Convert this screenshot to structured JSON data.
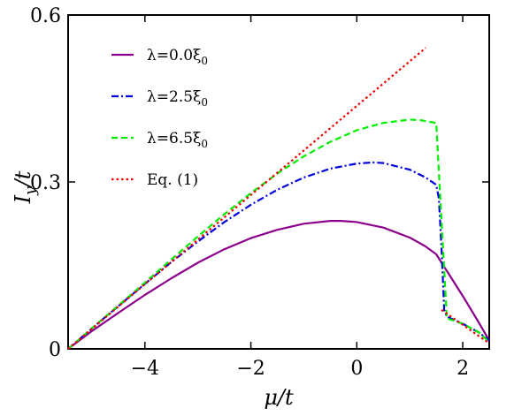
{
  "chart_data": {
    "type": "line",
    "title": "",
    "xlabel": "μ/t",
    "ylabel": "I_y/t",
    "xlim": [
      -5.45,
      2.5
    ],
    "ylim": [
      0,
      0.6
    ],
    "xticks": [
      {
        "value": -4,
        "label": "−4"
      },
      {
        "value": -2,
        "label": "−2"
      },
      {
        "value": 0,
        "label": "0"
      },
      {
        "value": 2,
        "label": "2"
      }
    ],
    "yticks": [
      {
        "value": 0,
        "label": "0"
      },
      {
        "value": 0.3,
        "label": "0.3"
      },
      {
        "value": 0.6,
        "label": "0.6"
      }
    ],
    "grid": false,
    "legend_position": "top-left",
    "series": [
      {
        "name": "λ=0.0ξ0",
        "color": "#8B008B",
        "dash": "solid",
        "points": [
          [
            -5.45,
            0.0
          ],
          [
            -5.0,
            0.032
          ],
          [
            -4.5,
            0.065
          ],
          [
            -4.0,
            0.097
          ],
          [
            -3.5,
            0.127
          ],
          [
            -3.0,
            0.155
          ],
          [
            -2.5,
            0.179
          ],
          [
            -2.0,
            0.199
          ],
          [
            -1.5,
            0.214
          ],
          [
            -1.0,
            0.225
          ],
          [
            -0.5,
            0.23
          ],
          [
            -0.3,
            0.23
          ],
          [
            0.0,
            0.228
          ],
          [
            0.5,
            0.218
          ],
          [
            1.0,
            0.2
          ],
          [
            1.3,
            0.184
          ],
          [
            1.5,
            0.17
          ],
          [
            1.7,
            0.14
          ],
          [
            2.0,
            0.095
          ],
          [
            2.3,
            0.048
          ],
          [
            2.5,
            0.015
          ]
        ]
      },
      {
        "name": "λ=2.5ξ0",
        "color": "#0000DD",
        "dash": "dashdot",
        "points": [
          [
            -5.45,
            0.0
          ],
          [
            -5.0,
            0.037
          ],
          [
            -4.5,
            0.077
          ],
          [
            -4.0,
            0.117
          ],
          [
            -3.5,
            0.156
          ],
          [
            -3.0,
            0.193
          ],
          [
            -2.5,
            0.228
          ],
          [
            -2.0,
            0.259
          ],
          [
            -1.5,
            0.286
          ],
          [
            -1.0,
            0.308
          ],
          [
            -0.5,
            0.324
          ],
          [
            0.0,
            0.333
          ],
          [
            0.3,
            0.335
          ],
          [
            0.5,
            0.334
          ],
          [
            1.0,
            0.322
          ],
          [
            1.3,
            0.308
          ],
          [
            1.5,
            0.295
          ],
          [
            1.55,
            0.27
          ],
          [
            1.6,
            0.18
          ],
          [
            1.65,
            0.07
          ],
          [
            1.7,
            0.058
          ],
          [
            2.0,
            0.045
          ],
          [
            2.3,
            0.03
          ],
          [
            2.5,
            0.015
          ]
        ]
      },
      {
        "name": "λ=6.5ξ0",
        "color": "#00EE00",
        "dash": "dashed",
        "points": [
          [
            -5.45,
            0.0
          ],
          [
            -5.0,
            0.037
          ],
          [
            -4.5,
            0.078
          ],
          [
            -4.0,
            0.119
          ],
          [
            -3.5,
            0.161
          ],
          [
            -3.0,
            0.202
          ],
          [
            -2.5,
            0.242
          ],
          [
            -2.0,
            0.28
          ],
          [
            -1.5,
            0.315
          ],
          [
            -1.0,
            0.346
          ],
          [
            -0.5,
            0.372
          ],
          [
            0.0,
            0.393
          ],
          [
            0.5,
            0.406
          ],
          [
            1.0,
            0.412
          ],
          [
            1.2,
            0.411
          ],
          [
            1.5,
            0.406
          ],
          [
            1.7,
            0.055
          ],
          [
            2.0,
            0.045
          ],
          [
            2.3,
            0.03
          ],
          [
            2.5,
            0.012
          ]
        ]
      },
      {
        "name": "Eq. (1)",
        "color": "#EE0000",
        "dash": "dotted",
        "points": [
          [
            -5.45,
            0.0
          ],
          [
            1.3,
            0.541
          ]
        ]
      },
      {
        "name": "",
        "color": "#EE0000",
        "dash": "dotted",
        "points": [
          [
            1.6,
            0.07
          ],
          [
            2.5,
            0.01
          ]
        ]
      }
    ]
  }
}
